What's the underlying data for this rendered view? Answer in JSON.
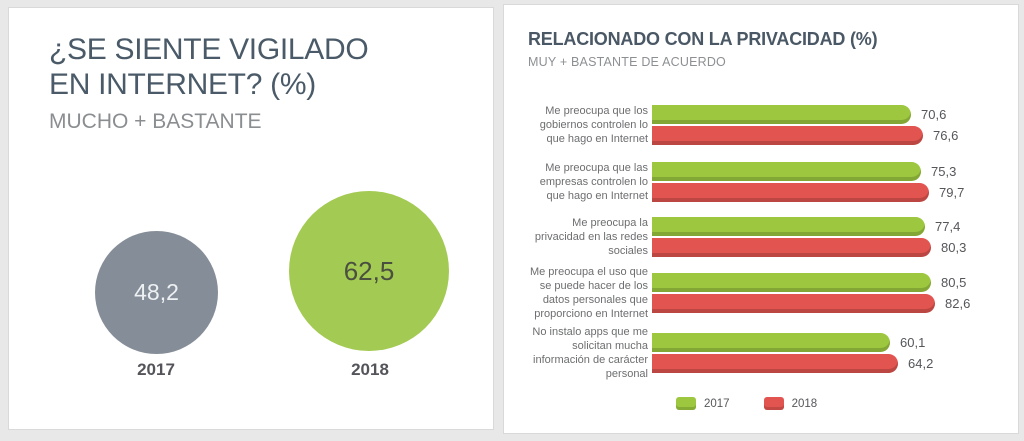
{
  "left_panel": {
    "title_line1": "¿SE SIENTE VIGILADO",
    "title_line2": "EN INTERNET? (%)",
    "subtitle": "MUCHO + BASTANTE",
    "bubbles": [
      {
        "year": "2017",
        "value": 48.2,
        "display": "48,2",
        "color": "#858e98"
      },
      {
        "year": "2018",
        "value": 62.5,
        "display": "62,5",
        "color": "#a3ca52"
      }
    ]
  },
  "right_panel": {
    "title": "RELACIONADO CON LA PRIVACIDAD (%)",
    "subtitle": "MUY + BASTANTE DE ACUERDO",
    "series_colors": {
      "y2017": "#9cc73e",
      "y2018": "#e1544f"
    },
    "rows": [
      {
        "label": "Me preocupa que los gobiernos controlen lo que hago en Internet",
        "v2017": 70.6,
        "v2018": 76.6,
        "d2017": "70,6",
        "d2018": "76,6"
      },
      {
        "label": "Me preocupa que las empresas controlen lo que hago en Internet",
        "v2017": 75.3,
        "v2018": 79.7,
        "d2017": "75,3",
        "d2018": "79,7"
      },
      {
        "label": "Me preocupa la privacidad en las redes sociales",
        "v2017": 77.4,
        "v2018": 80.3,
        "d2017": "77,4",
        "d2018": "80,3"
      },
      {
        "label": "Me preocupa el uso que se puede hacer de los datos personales que proporciono en Internet",
        "v2017": 80.5,
        "v2018": 82.6,
        "d2017": "80,5",
        "d2018": "82,6"
      },
      {
        "label": "No instalo apps que me solicitan mucha información de carácter personal",
        "v2017": 60.1,
        "v2018": 64.2,
        "d2017": "60,1",
        "d2018": "64,2"
      }
    ],
    "legend": [
      {
        "label": "2017",
        "color": "#9cc73e"
      },
      {
        "label": "2018",
        "color": "#e1544f"
      }
    ]
  },
  "chart_data": [
    {
      "type": "bar",
      "mark": "circle-area",
      "title": "¿SE SIENTE VIGILADO EN INTERNET? (%)",
      "subtitle": "MUCHO + BASTANTE",
      "categories": [
        "2017",
        "2018"
      ],
      "values": [
        48.2,
        62.5
      ],
      "colors": [
        "#858e98",
        "#a3ca52"
      ],
      "grid": false,
      "legend_position": "none"
    },
    {
      "type": "bar",
      "orientation": "horizontal",
      "title": "RELACIONADO CON LA PRIVACIDAD (%)",
      "subtitle": "MUY + BASTANTE DE ACUERDO",
      "categories": [
        "Me preocupa que los gobiernos controlen lo que hago en Internet",
        "Me preocupa que las empresas controlen lo que hago en Internet",
        "Me preocupa la privacidad en las redes sociales",
        "Me preocupa el uso que se puede hacer de los datos personales que proporciono en Internet",
        "No instalo apps que me solicitan mucha información de carácter personal"
      ],
      "series": [
        {
          "name": "2017",
          "values": [
            70.6,
            75.3,
            77.4,
            80.5,
            60.1
          ],
          "color": "#9cc73e"
        },
        {
          "name": "2018",
          "values": [
            76.6,
            79.7,
            80.3,
            82.6,
            64.2
          ],
          "color": "#e1544f"
        }
      ],
      "xlim": [
        0,
        100
      ],
      "grid": false,
      "legend_position": "bottom",
      "data_labels": true
    }
  ]
}
